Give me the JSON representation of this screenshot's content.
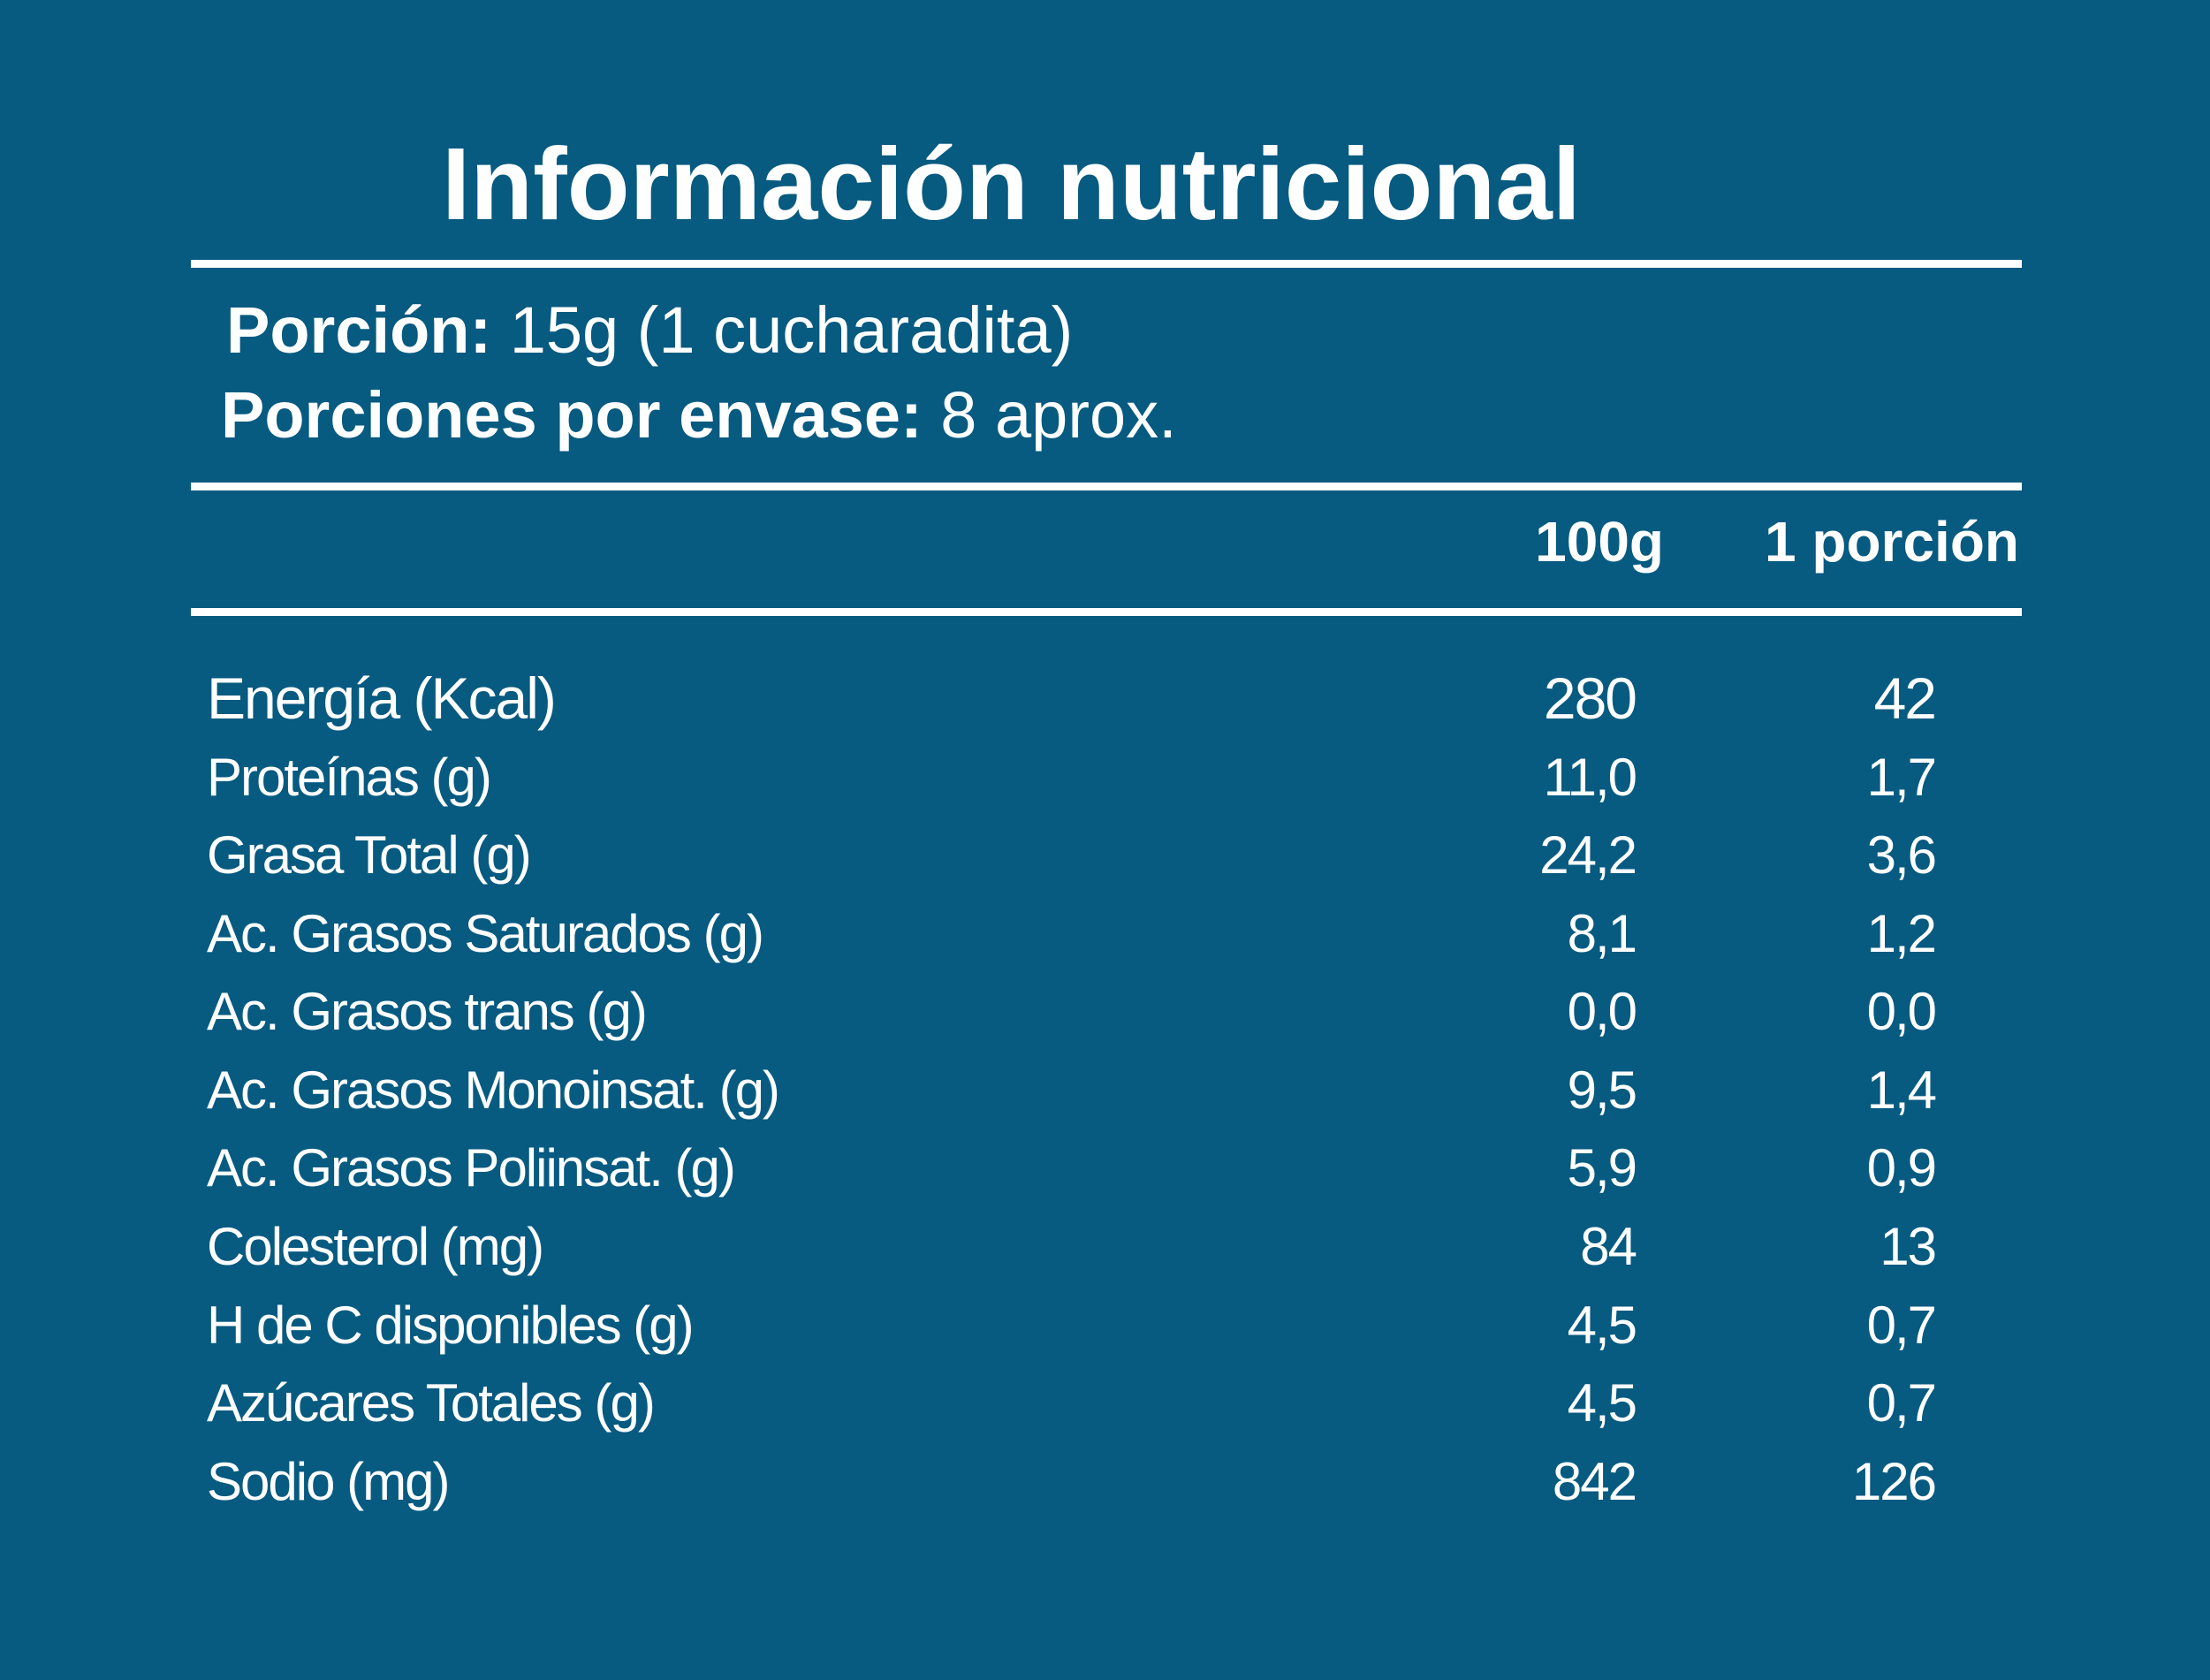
{
  "title": "Información nutricional",
  "serving": {
    "portion_label": "Porción:",
    "portion_value": "15g (1 cucharadita)",
    "per_container_label": "Porciones por envase:",
    "per_container_value": "8 aprox."
  },
  "columns": {
    "per_100g": "100g",
    "per_portion": "1 porción"
  },
  "rows": [
    {
      "name": "Energía (Kcal)",
      "per_100g": "280",
      "per_portion": "42"
    },
    {
      "name": "Proteínas (g)",
      "per_100g": "11,0",
      "per_portion": "1,7"
    },
    {
      "name": "Grasa Total (g)",
      "per_100g": "24,2",
      "per_portion": "3,6"
    },
    {
      "name": "Ac. Grasos Saturados (g)",
      "per_100g": "8,1",
      "per_portion": "1,2"
    },
    {
      "name": "Ac. Grasos trans (g)",
      "per_100g": "0,0",
      "per_portion": "0,0"
    },
    {
      "name": "Ac. Grasos Monoinsat. (g)",
      "per_100g": "9,5",
      "per_portion": "1,4"
    },
    {
      "name": "Ac. Grasos Poliinsat. (g)",
      "per_100g": "5,9",
      "per_portion": "0,9"
    },
    {
      "name": "Colesterol (mg)",
      "per_100g": "84",
      "per_portion": "13"
    },
    {
      "name": "H de C disponibles (g)",
      "per_100g": "4,5",
      "per_portion": "0,7"
    },
    {
      "name": "Azúcares Totales (g)",
      "per_100g": "4,5",
      "per_portion": "0,7"
    },
    {
      "name": "Sodio (mg)",
      "per_100g": "842",
      "per_portion": "126"
    }
  ],
  "colors": {
    "background": "#075a80",
    "text": "#ffffff"
  }
}
